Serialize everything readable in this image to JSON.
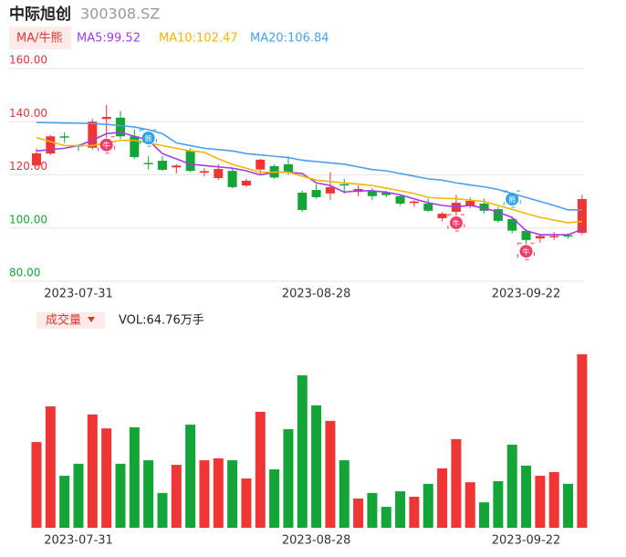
{
  "header": {
    "name": "中际旭创",
    "code": "300308.SZ"
  },
  "chart_data": [
    {
      "type": "candlestick",
      "legend_title": "MA/牛熊",
      "legend": [
        "MA5:99.52",
        "MA10:102.47",
        "MA20:106.84"
      ],
      "categories": [
        null,
        null,
        null,
        "2023-07-31",
        null,
        null,
        null,
        null,
        null,
        null,
        null,
        null,
        null,
        null,
        null,
        null,
        null,
        null,
        null,
        null,
        "2023-08-28",
        null,
        null,
        null,
        null,
        null,
        null,
        null,
        null,
        null,
        null,
        null,
        null,
        null,
        null,
        "2023-09-22",
        null,
        null,
        null,
        null
      ],
      "open": [
        123.6,
        128,
        134.5,
        131,
        130.2,
        141,
        141.5,
        134.5,
        124.5,
        125.3,
        122.8,
        129,
        120.8,
        118.8,
        121.5,
        116,
        122,
        123.3,
        124,
        113.3,
        114.3,
        113,
        116.5,
        113.6,
        114,
        113.3,
        112,
        109.4,
        109.2,
        103.7,
        106.1,
        108.2,
        109.2,
        107.1,
        103.4,
        98.9,
        96.1,
        96.5,
        97.3,
        98.2
      ],
      "high": [
        130,
        135,
        136,
        131.5,
        141,
        146.3,
        144,
        137,
        127,
        127,
        124,
        130,
        122.5,
        124,
        122.5,
        118.5,
        126,
        124,
        127,
        114,
        116.5,
        121,
        118.5,
        116,
        115,
        114,
        112.5,
        110.5,
        111,
        106,
        112.5,
        111.5,
        111,
        108,
        104,
        99.5,
        97.5,
        98.5,
        98,
        112.5
      ],
      "low": [
        123,
        127.5,
        132,
        129,
        129.5,
        134,
        133.5,
        126,
        122,
        121.5,
        120.5,
        121,
        119.5,
        118,
        115,
        115.5,
        120,
        118.5,
        120,
        106,
        111,
        110.5,
        113,
        112,
        110.5,
        111.5,
        108.5,
        108,
        106,
        102.5,
        104.7,
        107.5,
        105.5,
        102,
        98,
        94,
        94.5,
        95.5,
        96,
        97.5
      ],
      "close": [
        128.1,
        134.5,
        134,
        130.8,
        140,
        141.8,
        134.5,
        126.7,
        124,
        121.9,
        123.5,
        121.5,
        121.4,
        122.2,
        115.4,
        117.8,
        125.7,
        119,
        121.2,
        106.8,
        111.6,
        115.4,
        116,
        114.7,
        112,
        112.4,
        109.2,
        110,
        106.5,
        105.4,
        109.5,
        110.2,
        106.5,
        102.7,
        99,
        95.5,
        97,
        97,
        96.8,
        110.9
      ],
      "up_color": "#f03535",
      "down_color": "#13a537",
      "series": [
        {
          "name": "MA5",
          "color": "#a13ee6",
          "values": [
            129,
            129.5,
            130,
            131,
            133,
            135.5,
            136,
            134.5,
            133,
            128,
            126,
            124,
            123.5,
            123,
            122.5,
            121.5,
            120,
            121,
            121,
            120.5,
            117,
            116,
            113.5,
            114,
            114,
            113.5,
            112.5,
            111,
            109.5,
            108.5,
            108,
            108.5,
            107.5,
            106,
            104,
            99,
            97.5,
            97.5,
            97.5,
            99.52
          ]
        },
        {
          "name": "MA10",
          "color": "#f2b705",
          "values": [
            134,
            132.5,
            131,
            131,
            131,
            132,
            133,
            133,
            132,
            131,
            130,
            129,
            128.5,
            126,
            124,
            122.5,
            121,
            121,
            121,
            119.5,
            118,
            117.5,
            117,
            116.5,
            116,
            115,
            114,
            113,
            111.5,
            111.2,
            111,
            110.5,
            110,
            108.5,
            107,
            105.5,
            104,
            103,
            102,
            102.47
          ]
        },
        {
          "name": "MA20",
          "color": "#4b9ff0",
          "values": [
            139.7,
            139.6,
            139.5,
            139.4,
            139.3,
            139,
            138.5,
            138,
            137,
            135.5,
            132,
            131,
            130,
            129.5,
            129,
            128,
            127.5,
            127,
            126.5,
            125.5,
            125,
            124.5,
            124,
            123,
            122,
            121.5,
            120.5,
            119.5,
            118.5,
            118,
            117,
            116.2,
            115.5,
            114.5,
            113,
            111.5,
            110,
            108.5,
            106.84,
            106.84
          ]
        }
      ],
      "signals": [
        {
          "index": 5,
          "label": "牛"
        },
        {
          "index": 8,
          "label": "熊"
        },
        {
          "index": 30,
          "label": "牛"
        },
        {
          "index": 34,
          "label": "熊"
        },
        {
          "index": 35,
          "label": "牛"
        }
      ],
      "ylim": [
        80,
        160
      ],
      "yticks": [
        {
          "value": 160,
          "label": "160.00",
          "color": "#d9363e"
        },
        {
          "value": 140,
          "label": "140.00",
          "color": "#d9363e"
        },
        {
          "value": 120,
          "label": "120.00",
          "color": "#d9363e"
        },
        {
          "value": 100,
          "label": "100.00",
          "color": "#13a537"
        },
        {
          "value": 80,
          "label": "80.00",
          "color": "#13a537"
        }
      ],
      "grid": true
    },
    {
      "type": "bar",
      "title": "成交量",
      "legend": "VOL:64.76万手",
      "categories": [
        null,
        null,
        null,
        "2023-07-31",
        null,
        null,
        null,
        null,
        null,
        null,
        null,
        null,
        null,
        null,
        null,
        null,
        null,
        null,
        null,
        null,
        "2023-08-28",
        null,
        null,
        null,
        null,
        null,
        null,
        null,
        null,
        null,
        null,
        null,
        null,
        null,
        null,
        "2023-09-22",
        null,
        null,
        null,
        null
      ],
      "values": [
        32.0,
        45.3,
        19.4,
        23.9,
        42.3,
        37.1,
        23.9,
        37.5,
        25.2,
        13.0,
        23.5,
        38.5,
        25.2,
        25.9,
        25.2,
        18.4,
        43.3,
        21.8,
        36.8,
        56.9,
        45.7,
        39.9,
        25.2,
        10.9,
        13.0,
        7.8,
        13.6,
        11.6,
        16.4,
        22.2,
        33.1,
        17.0,
        9.5,
        17.4,
        31.0,
        23.2,
        19.4,
        20.8,
        16.4,
        64.76
      ]
    }
  ]
}
